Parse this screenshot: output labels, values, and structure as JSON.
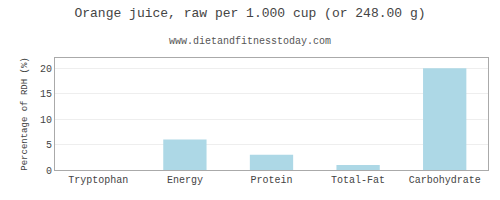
{
  "chart_data": {
    "type": "bar",
    "title": "Orange juice, raw per 1.000 cup (or 248.00 g)",
    "subtitle": "www.dietandfitnesstoday.com",
    "ylabel": "Percentage of RDH (%)",
    "categories": [
      "Tryptophan",
      "Energy",
      "Protein",
      "Total-Fat",
      "Carbohydrate"
    ],
    "values": [
      0.0,
      6.0,
      3.0,
      1.0,
      20.0
    ],
    "color": "#add8e6",
    "ylim": [
      0,
      22
    ],
    "yticks": [
      0,
      5,
      10,
      15,
      20
    ],
    "grid": true
  }
}
